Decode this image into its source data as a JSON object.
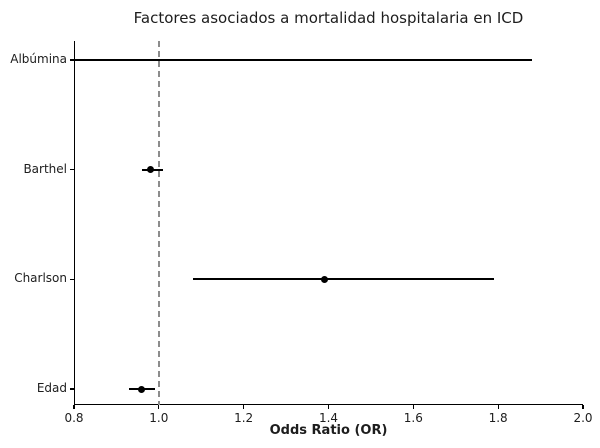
{
  "chart_data": {
    "type": "scatter",
    "subtype": "forest-plot",
    "title": "Factores asociados a mortalidad hospitalaria en ICD",
    "xlabel": "Odds Ratio (OR)",
    "ylabel": "",
    "xlim": [
      0.8,
      2.0
    ],
    "xticks": [
      0.8,
      1.0,
      1.2,
      1.4,
      1.6,
      1.8,
      2.0
    ],
    "reference_line_x": 1.0,
    "grid": false,
    "legend": false,
    "categories": [
      "Albúmina",
      "Barthel",
      "Charlson",
      "Edad"
    ],
    "points": [
      {
        "label": "Albúmina",
        "or_value": null,
        "or_offscale": "<0.8",
        "ci_low": 0.8,
        "ci_low_clipped": true,
        "ci_high": 1.88,
        "marker_visible": false
      },
      {
        "label": "Barthel",
        "or_value": 0.98,
        "ci_low": 0.96,
        "ci_low_clipped": false,
        "ci_high": 1.01,
        "marker_visible": true
      },
      {
        "label": "Charlson",
        "or_value": 1.39,
        "ci_low": 1.08,
        "ci_low_clipped": false,
        "ci_high": 1.79,
        "marker_visible": true
      },
      {
        "label": "Edad",
        "or_value": 0.96,
        "ci_low": 0.93,
        "ci_low_clipped": false,
        "ci_high": 0.99,
        "marker_visible": true
      }
    ],
    "colors": {
      "ci_line": "#000000",
      "marker": "#000000",
      "reference_line": "#8c8c8c",
      "text": "#1d1d1d",
      "background": "#ffffff"
    }
  }
}
